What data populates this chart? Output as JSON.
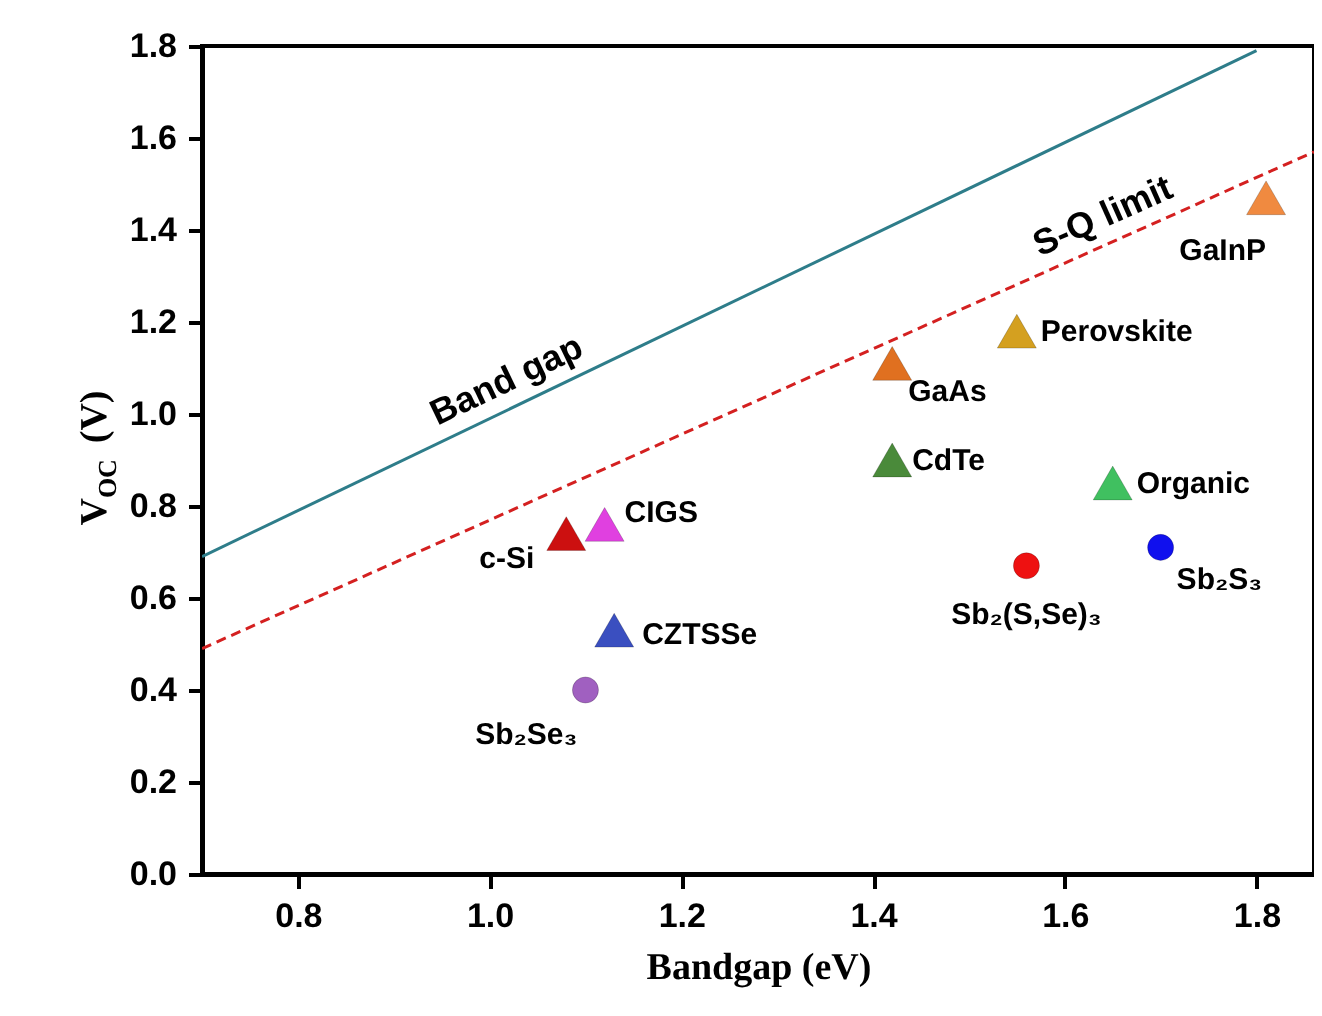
{
  "chart_data": {
    "type": "scatter",
    "xlabel": "Bandgap (eV)",
    "ylabel": "V$_{OC}$ (V)",
    "xlim": [
      0.7,
      1.86
    ],
    "ylim": [
      0,
      1.8
    ],
    "xticks": [
      {
        "value": 0.8,
        "label": "0.8"
      },
      {
        "value": 1,
        "label": "1.0"
      },
      {
        "value": 1.2,
        "label": "1.2"
      },
      {
        "value": 1.4,
        "label": "1.4"
      },
      {
        "value": 1.6,
        "label": "1.6"
      },
      {
        "value": 1.8,
        "label": "1.8"
      }
    ],
    "yticks": [
      {
        "value": 0,
        "label": "0.0"
      },
      {
        "value": 0.2,
        "label": "0.2"
      },
      {
        "value": 0.4,
        "label": "0.4"
      },
      {
        "value": 0.6,
        "label": "0.6"
      },
      {
        "value": 0.8,
        "label": "0.8"
      },
      {
        "value": 1,
        "label": "1.0"
      },
      {
        "value": 1.2,
        "label": "1.2"
      },
      {
        "value": 1.4,
        "label": "1.4"
      },
      {
        "value": 1.6,
        "label": "1.6"
      },
      {
        "value": 1.8,
        "label": "1.8"
      }
    ],
    "grid": false,
    "series": [
      {
        "name": "Band gap",
        "type": "line",
        "color": "#2e7d8a",
        "line_style": "solid",
        "marker": "none",
        "x": [
          0.7,
          1.8
        ],
        "values": [
          0.69,
          1.79
        ]
      },
      {
        "name": "S-Q limit",
        "type": "line",
        "color": "#d42020",
        "line_style": "dashed",
        "marker": "none",
        "x": [
          0.7,
          1.86
        ],
        "values": [
          0.49,
          1.57
        ]
      },
      {
        "name": "c-Si",
        "color": "#cc1010",
        "marker": "triangle",
        "x": [
          1.08
        ],
        "values": [
          0.74
        ]
      },
      {
        "name": "CIGS",
        "color": "#e040e0",
        "marker": "triangle",
        "x": [
          1.12
        ],
        "values": [
          0.76
        ]
      },
      {
        "name": "CZTSSe",
        "color": "#3a4fc0",
        "marker": "triangle",
        "x": [
          1.13
        ],
        "values": [
          0.53
        ]
      },
      {
        "name": "Sb₂Se₃",
        "color": "#a060c0",
        "marker": "circle",
        "x": [
          1.1
        ],
        "values": [
          0.4
        ]
      },
      {
        "name": "GaAs",
        "color": "#e07020",
        "marker": "triangle",
        "x": [
          1.42
        ],
        "values": [
          1.11
        ]
      },
      {
        "name": "Perovskite",
        "color": "#d4a020",
        "marker": "triangle",
        "x": [
          1.55
        ],
        "values": [
          1.18
        ]
      },
      {
        "name": "CdTe",
        "color": "#4a8a3a",
        "marker": "triangle",
        "x": [
          1.42
        ],
        "values": [
          0.9
        ]
      },
      {
        "name": "Organic",
        "color": "#40c060",
        "marker": "triangle",
        "x": [
          1.65
        ],
        "values": [
          0.85
        ]
      },
      {
        "name": "Sb₂(S,Se)₃",
        "color": "#ee1111",
        "marker": "circle",
        "x": [
          1.56
        ],
        "values": [
          0.67
        ]
      },
      {
        "name": "Sb₂S₃",
        "color": "#1010ee",
        "marker": "circle",
        "x": [
          1.7
        ],
        "values": [
          0.71
        ]
      },
      {
        "name": "GaInP",
        "color": "#f08a40",
        "marker": "triangle",
        "x": [
          1.81
        ],
        "values": [
          1.47
        ]
      }
    ]
  }
}
